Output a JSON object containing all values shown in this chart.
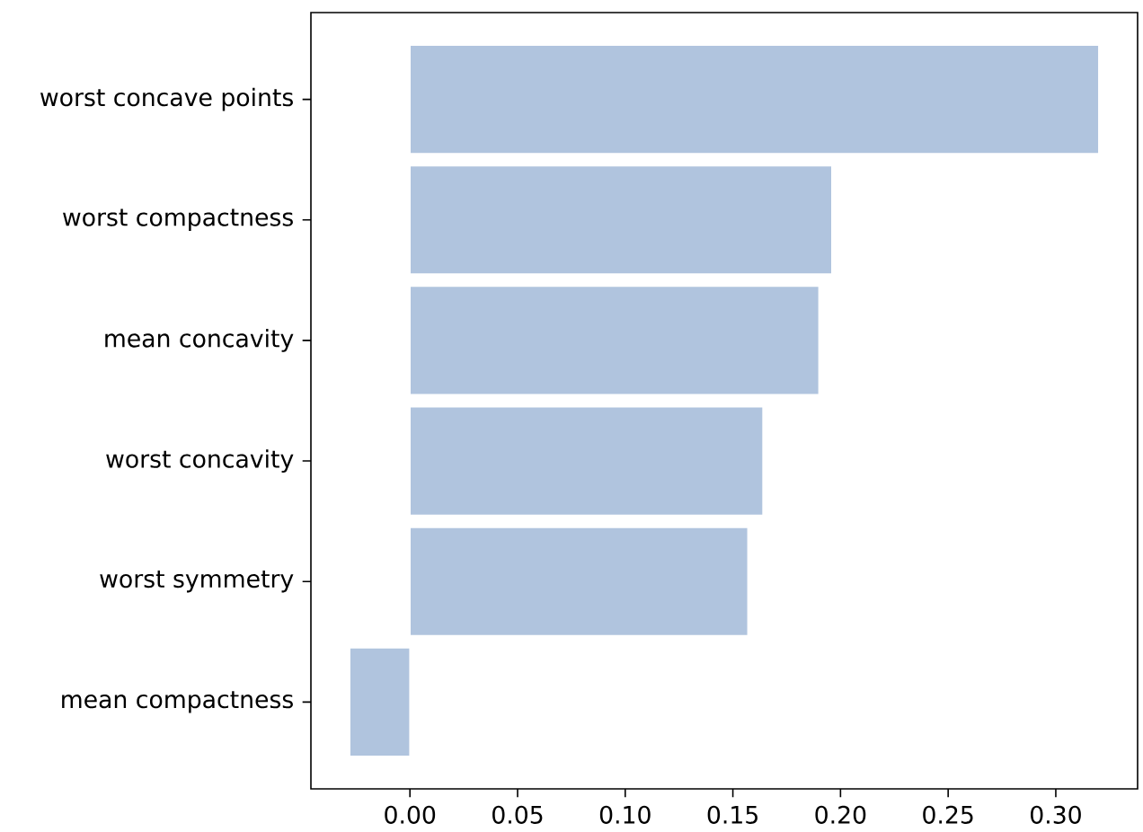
{
  "chart_data": {
    "type": "bar",
    "orientation": "horizontal",
    "categories": [
      "worst concave points",
      "worst compactness",
      "mean concavity",
      "worst concavity",
      "worst symmetry",
      "mean compactness"
    ],
    "values": [
      0.32,
      0.196,
      0.19,
      0.164,
      0.157,
      -0.028
    ],
    "color": "#b0c4de",
    "xlim": [
      -0.046,
      0.338
    ],
    "xticks": [
      {
        "value": 0,
        "label": "0.00"
      },
      {
        "value": 0.05,
        "label": "0.05"
      },
      {
        "value": 0.1,
        "label": "0.10"
      },
      {
        "value": 0.15,
        "label": "0.15"
      },
      {
        "value": 0.2,
        "label": "0.20"
      },
      {
        "value": 0.25,
        "label": "0.25"
      },
      {
        "value": 0.3,
        "label": "0.30"
      }
    ],
    "grid": false
  }
}
